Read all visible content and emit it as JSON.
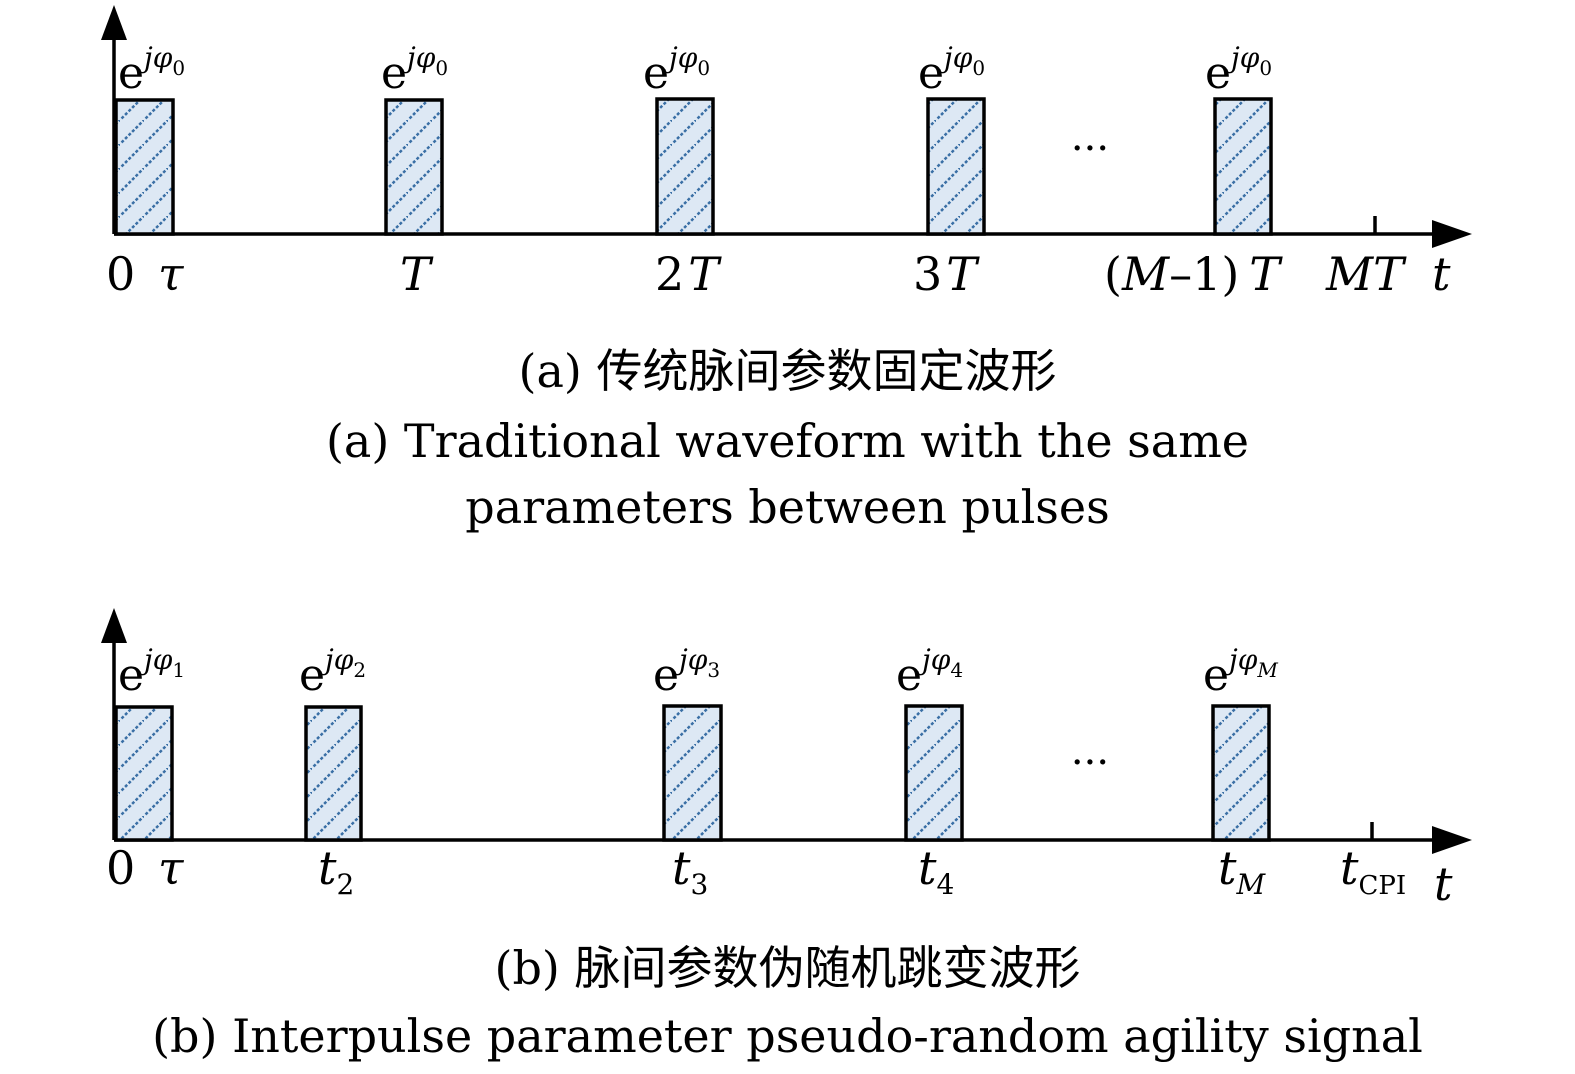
{
  "panel_a": {
    "phases": [
      {
        "base": "e",
        "sup": "jφ",
        "sub": "0"
      },
      {
        "base": "e",
        "sup": "jφ",
        "sub": "0"
      },
      {
        "base": "e",
        "sup": "jφ",
        "sub": "0"
      },
      {
        "base": "e",
        "sup": "jφ",
        "sub": "0"
      },
      {
        "base": "e",
        "sup": "jφ",
        "sub": "0"
      }
    ],
    "ticks": {
      "zero": "0",
      "tau": "τ",
      "T": "T",
      "two": "2",
      "three": "3",
      "m1_open": "(",
      "m1_M": "M",
      "m1_minus": "–1)",
      "m1_T": "T",
      "MT": "MT",
      "t": "t"
    },
    "ellipsis": "···",
    "caption_cn": "(a) 传统脉间参数固定波形",
    "caption_en_line1": "(a) Traditional waveform with the same",
    "caption_en_line2": "parameters between pulses"
  },
  "panel_b": {
    "phases": [
      {
        "base": "e",
        "sup": "jφ",
        "sub": "1"
      },
      {
        "base": "e",
        "sup": "jφ",
        "sub": "2"
      },
      {
        "base": "e",
        "sup": "jφ",
        "sub": "3"
      },
      {
        "base": "e",
        "sup": "jφ",
        "sub": "4"
      },
      {
        "base": "e",
        "sup": "jφ",
        "sub": "M"
      }
    ],
    "ticks": {
      "zero": "0",
      "tau": "τ",
      "t": "t",
      "sub2": "2",
      "sub3": "3",
      "sub4": "4",
      "subM": "M",
      "subCPI": "CPI"
    },
    "ellipsis": "···",
    "caption_cn": "(b) 脉间参数伪随机跳变波形",
    "caption_en": "(b) Interpulse parameter pseudo-random agility signal"
  }
}
